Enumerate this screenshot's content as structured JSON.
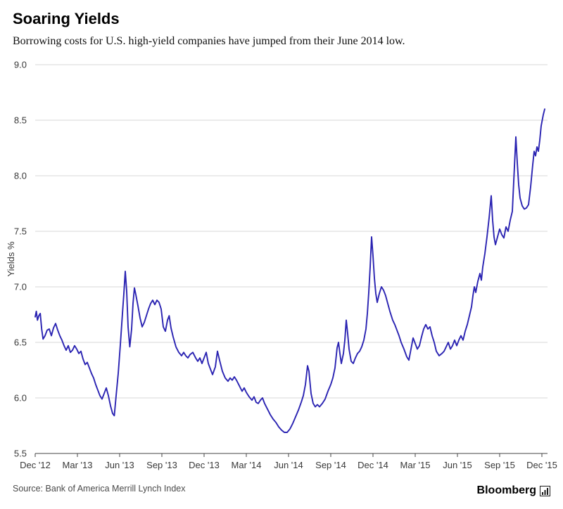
{
  "header": {
    "title": "Soaring Yields",
    "subtitle": "Borrowing costs for U.S. high-yield companies have jumped from their June 2014 low."
  },
  "footer": {
    "source": "Source: Bank of America Merrill Lynch Index",
    "brand": "Bloomberg",
    "brand_icon": "bar-chart-icon"
  },
  "chart_data": {
    "type": "line",
    "title": "Soaring Yields",
    "subtitle": "Borrowing costs for U.S. high-yield companies have jumped from their June 2014 low.",
    "xlabel": "",
    "ylabel": "Yields %",
    "ylim": [
      5.5,
      9.0
    ],
    "y_ticks": [
      5.5,
      6.0,
      6.5,
      7.0,
      7.5,
      8.0,
      8.5,
      9.0
    ],
    "xlim_months": [
      0,
      36.4
    ],
    "x_ticks": [
      {
        "m": 0,
        "label": "Dec '12"
      },
      {
        "m": 3,
        "label": "Mar '13"
      },
      {
        "m": 6,
        "label": "Jun '13"
      },
      {
        "m": 9,
        "label": "Sep '13"
      },
      {
        "m": 12,
        "label": "Dec '13"
      },
      {
        "m": 15,
        "label": "Mar '14"
      },
      {
        "m": 18,
        "label": "Jun '14"
      },
      {
        "m": 21,
        "label": "Sep '14"
      },
      {
        "m": 24,
        "label": "Dec '14"
      },
      {
        "m": 27,
        "label": "Mar '15"
      },
      {
        "m": 30,
        "label": "Jun '15"
      },
      {
        "m": 33,
        "label": "Sep '15"
      },
      {
        "m": 36,
        "label": "Dec '15"
      }
    ],
    "grid": true,
    "legend": "none",
    "line_color": "#2a23b2",
    "grid_color": "#d7d7d7",
    "axis_color": "#444444",
    "series": [
      {
        "name": "U.S. high-yield borrowing cost (Yields %)",
        "x_unit": "months since Dec 2012",
        "points": [
          [
            0,
            6.73
          ],
          [
            0.08,
            6.78
          ],
          [
            0.16,
            6.7
          ],
          [
            0.26,
            6.74
          ],
          [
            0.36,
            6.76
          ],
          [
            0.46,
            6.62
          ],
          [
            0.56,
            6.53
          ],
          [
            0.7,
            6.56
          ],
          [
            0.85,
            6.61
          ],
          [
            1.0,
            6.62
          ],
          [
            1.15,
            6.56
          ],
          [
            1.3,
            6.63
          ],
          [
            1.45,
            6.67
          ],
          [
            1.6,
            6.61
          ],
          [
            1.75,
            6.56
          ],
          [
            1.9,
            6.52
          ],
          [
            2.05,
            6.47
          ],
          [
            2.2,
            6.43
          ],
          [
            2.35,
            6.47
          ],
          [
            2.5,
            6.41
          ],
          [
            2.65,
            6.43
          ],
          [
            2.8,
            6.47
          ],
          [
            2.95,
            6.44
          ],
          [
            3.1,
            6.4
          ],
          [
            3.25,
            6.42
          ],
          [
            3.4,
            6.35
          ],
          [
            3.55,
            6.3
          ],
          [
            3.7,
            6.32
          ],
          [
            3.85,
            6.27
          ],
          [
            4.0,
            6.22
          ],
          [
            4.15,
            6.18
          ],
          [
            4.3,
            6.12
          ],
          [
            4.45,
            6.07
          ],
          [
            4.6,
            6.02
          ],
          [
            4.75,
            5.99
          ],
          [
            4.9,
            6.04
          ],
          [
            5.05,
            6.09
          ],
          [
            5.2,
            6.02
          ],
          [
            5.35,
            5.93
          ],
          [
            5.5,
            5.86
          ],
          [
            5.62,
            5.84
          ],
          [
            5.75,
            6.02
          ],
          [
            5.9,
            6.22
          ],
          [
            6.05,
            6.48
          ],
          [
            6.2,
            6.76
          ],
          [
            6.3,
            6.94
          ],
          [
            6.4,
            7.14
          ],
          [
            6.5,
            6.96
          ],
          [
            6.6,
            6.64
          ],
          [
            6.72,
            6.46
          ],
          [
            6.85,
            6.62
          ],
          [
            6.95,
            6.85
          ],
          [
            7.05,
            6.99
          ],
          [
            7.15,
            6.93
          ],
          [
            7.3,
            6.83
          ],
          [
            7.45,
            6.72
          ],
          [
            7.6,
            6.64
          ],
          [
            7.75,
            6.68
          ],
          [
            7.9,
            6.74
          ],
          [
            8.05,
            6.8
          ],
          [
            8.2,
            6.85
          ],
          [
            8.35,
            6.88
          ],
          [
            8.5,
            6.84
          ],
          [
            8.65,
            6.88
          ],
          [
            8.8,
            6.86
          ],
          [
            8.95,
            6.8
          ],
          [
            9.1,
            6.64
          ],
          [
            9.25,
            6.6
          ],
          [
            9.4,
            6.7
          ],
          [
            9.52,
            6.74
          ],
          [
            9.65,
            6.63
          ],
          [
            9.8,
            6.55
          ],
          [
            10.0,
            6.46
          ],
          [
            10.2,
            6.41
          ],
          [
            10.4,
            6.38
          ],
          [
            10.55,
            6.41
          ],
          [
            10.7,
            6.38
          ],
          [
            10.85,
            6.36
          ],
          [
            11.0,
            6.39
          ],
          [
            11.2,
            6.41
          ],
          [
            11.4,
            6.36
          ],
          [
            11.55,
            6.33
          ],
          [
            11.7,
            6.36
          ],
          [
            11.85,
            6.31
          ],
          [
            12.0,
            6.36
          ],
          [
            12.15,
            6.41
          ],
          [
            12.3,
            6.31
          ],
          [
            12.45,
            6.26
          ],
          [
            12.6,
            6.21
          ],
          [
            12.8,
            6.28
          ],
          [
            12.95,
            6.42
          ],
          [
            13.1,
            6.34
          ],
          [
            13.3,
            6.24
          ],
          [
            13.5,
            6.18
          ],
          [
            13.7,
            6.15
          ],
          [
            13.85,
            6.18
          ],
          [
            14.0,
            6.16
          ],
          [
            14.15,
            6.19
          ],
          [
            14.3,
            6.16
          ],
          [
            14.5,
            6.11
          ],
          [
            14.7,
            6.06
          ],
          [
            14.85,
            6.09
          ],
          [
            15.0,
            6.05
          ],
          [
            15.2,
            6.01
          ],
          [
            15.4,
            5.98
          ],
          [
            15.55,
            6.01
          ],
          [
            15.7,
            5.96
          ],
          [
            15.85,
            5.95
          ],
          [
            16.0,
            5.98
          ],
          [
            16.15,
            6.0
          ],
          [
            16.3,
            5.95
          ],
          [
            16.5,
            5.9
          ],
          [
            16.7,
            5.85
          ],
          [
            16.9,
            5.81
          ],
          [
            17.1,
            5.78
          ],
          [
            17.3,
            5.74
          ],
          [
            17.5,
            5.71
          ],
          [
            17.7,
            5.69
          ],
          [
            17.9,
            5.69
          ],
          [
            18.1,
            5.72
          ],
          [
            18.3,
            5.77
          ],
          [
            18.5,
            5.83
          ],
          [
            18.7,
            5.89
          ],
          [
            18.9,
            5.96
          ],
          [
            19.05,
            6.02
          ],
          [
            19.2,
            6.12
          ],
          [
            19.35,
            6.29
          ],
          [
            19.45,
            6.24
          ],
          [
            19.6,
            6.04
          ],
          [
            19.75,
            5.95
          ],
          [
            19.9,
            5.92
          ],
          [
            20.05,
            5.94
          ],
          [
            20.2,
            5.92
          ],
          [
            20.4,
            5.95
          ],
          [
            20.6,
            5.99
          ],
          [
            20.8,
            6.06
          ],
          [
            21.0,
            6.12
          ],
          [
            21.15,
            6.18
          ],
          [
            21.3,
            6.27
          ],
          [
            21.45,
            6.45
          ],
          [
            21.55,
            6.5
          ],
          [
            21.65,
            6.4
          ],
          [
            21.75,
            6.31
          ],
          [
            21.9,
            6.4
          ],
          [
            22.0,
            6.52
          ],
          [
            22.1,
            6.7
          ],
          [
            22.2,
            6.58
          ],
          [
            22.3,
            6.44
          ],
          [
            22.45,
            6.33
          ],
          [
            22.6,
            6.31
          ],
          [
            22.75,
            6.36
          ],
          [
            22.9,
            6.4
          ],
          [
            23.05,
            6.42
          ],
          [
            23.2,
            6.46
          ],
          [
            23.35,
            6.52
          ],
          [
            23.5,
            6.62
          ],
          [
            23.6,
            6.76
          ],
          [
            23.7,
            6.95
          ],
          [
            23.8,
            7.18
          ],
          [
            23.9,
            7.45
          ],
          [
            24.0,
            7.28
          ],
          [
            24.1,
            7.08
          ],
          [
            24.2,
            6.94
          ],
          [
            24.3,
            6.86
          ],
          [
            24.45,
            6.94
          ],
          [
            24.6,
            7.0
          ],
          [
            24.75,
            6.97
          ],
          [
            24.9,
            6.92
          ],
          [
            25.05,
            6.85
          ],
          [
            25.2,
            6.78
          ],
          [
            25.4,
            6.7
          ],
          [
            25.55,
            6.66
          ],
          [
            25.7,
            6.61
          ],
          [
            25.85,
            6.56
          ],
          [
            26.0,
            6.5
          ],
          [
            26.2,
            6.44
          ],
          [
            26.4,
            6.37
          ],
          [
            26.55,
            6.34
          ],
          [
            26.7,
            6.44
          ],
          [
            26.85,
            6.54
          ],
          [
            27.0,
            6.49
          ],
          [
            27.15,
            6.44
          ],
          [
            27.3,
            6.47
          ],
          [
            27.45,
            6.55
          ],
          [
            27.6,
            6.62
          ],
          [
            27.75,
            6.66
          ],
          [
            27.9,
            6.62
          ],
          [
            28.05,
            6.64
          ],
          [
            28.2,
            6.56
          ],
          [
            28.35,
            6.5
          ],
          [
            28.5,
            6.42
          ],
          [
            28.7,
            6.38
          ],
          [
            28.9,
            6.4
          ],
          [
            29.05,
            6.42
          ],
          [
            29.2,
            6.46
          ],
          [
            29.35,
            6.5
          ],
          [
            29.5,
            6.44
          ],
          [
            29.65,
            6.47
          ],
          [
            29.8,
            6.52
          ],
          [
            29.95,
            6.47
          ],
          [
            30.1,
            6.52
          ],
          [
            30.25,
            6.56
          ],
          [
            30.4,
            6.52
          ],
          [
            30.55,
            6.6
          ],
          [
            30.7,
            6.66
          ],
          [
            30.85,
            6.74
          ],
          [
            31.0,
            6.82
          ],
          [
            31.1,
            6.92
          ],
          [
            31.2,
            7.0
          ],
          [
            31.3,
            6.95
          ],
          [
            31.45,
            7.05
          ],
          [
            31.6,
            7.12
          ],
          [
            31.7,
            7.06
          ],
          [
            31.8,
            7.18
          ],
          [
            31.95,
            7.3
          ],
          [
            32.1,
            7.45
          ],
          [
            32.25,
            7.62
          ],
          [
            32.4,
            7.82
          ],
          [
            32.5,
            7.6
          ],
          [
            32.6,
            7.45
          ],
          [
            32.7,
            7.38
          ],
          [
            32.85,
            7.45
          ],
          [
            33.0,
            7.52
          ],
          [
            33.15,
            7.47
          ],
          [
            33.3,
            7.44
          ],
          [
            33.45,
            7.54
          ],
          [
            33.6,
            7.5
          ],
          [
            33.75,
            7.6
          ],
          [
            33.9,
            7.68
          ],
          [
            34.0,
            7.95
          ],
          [
            34.15,
            8.35
          ],
          [
            34.25,
            8.12
          ],
          [
            34.35,
            7.92
          ],
          [
            34.45,
            7.8
          ],
          [
            34.6,
            7.73
          ],
          [
            34.75,
            7.7
          ],
          [
            34.9,
            7.71
          ],
          [
            35.05,
            7.74
          ],
          [
            35.2,
            7.9
          ],
          [
            35.35,
            8.1
          ],
          [
            35.45,
            8.22
          ],
          [
            35.55,
            8.18
          ],
          [
            35.65,
            8.26
          ],
          [
            35.75,
            8.22
          ],
          [
            35.85,
            8.32
          ],
          [
            35.95,
            8.45
          ],
          [
            36.1,
            8.55
          ],
          [
            36.2,
            8.6
          ]
        ]
      }
    ]
  }
}
